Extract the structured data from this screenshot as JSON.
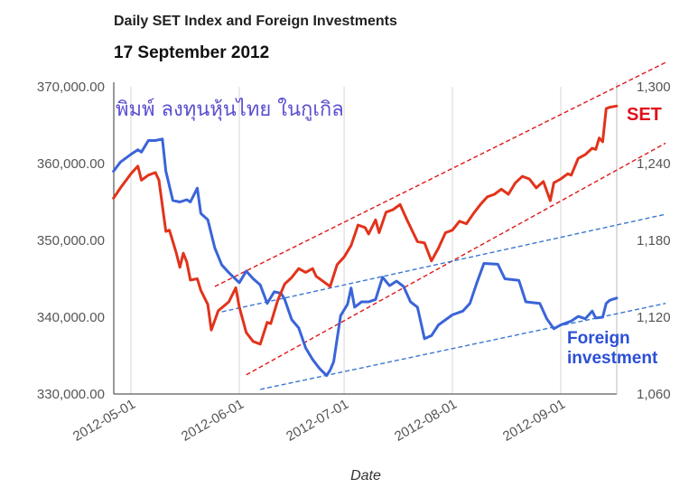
{
  "header": {
    "title": "Daily SET Index and Foreign Investments",
    "date": "17 September 2012",
    "watermark": "พิมพ์ ลงทุนหุ้นไทย ในกูเกิล"
  },
  "labels": {
    "set": "SET",
    "foreign_line1": "Foreign",
    "foreign_line2": "investment"
  },
  "chart_data": {
    "type": "line",
    "title": "Daily SET Index and Foreign Investments",
    "subtitle": "17 September 2012",
    "xlabel": "Date",
    "x_ticks": [
      "2012-05-01",
      "2012-06-01",
      "2012-07-01",
      "2012-08-01",
      "2012-09-01"
    ],
    "y_left": {
      "min": 330000,
      "max": 370000,
      "ticks": [
        "330,000.00",
        "340,000.00",
        "350,000.00",
        "360,000.00",
        "370,000.00"
      ]
    },
    "y_right": {
      "min": 1060,
      "max": 1300,
      "ticks": [
        "1,060",
        "1,120",
        "1,180",
        "1,240",
        "1,300"
      ]
    },
    "grid": "vertical",
    "series": [
      {
        "name": "Foreign investment",
        "axis": "left",
        "color": "#3a64d8",
        "points": [
          [
            "2012-04-26",
            359000
          ],
          [
            "2012-04-28",
            360200
          ],
          [
            "2012-05-01",
            361200
          ],
          [
            "2012-05-03",
            361800
          ],
          [
            "2012-05-04",
            361500
          ],
          [
            "2012-05-06",
            363000
          ],
          [
            "2012-05-08",
            363000
          ],
          [
            "2012-05-10",
            363200
          ],
          [
            "2012-05-11",
            359000
          ],
          [
            "2012-05-13",
            355200
          ],
          [
            "2012-05-15",
            355000
          ],
          [
            "2012-05-17",
            355300
          ],
          [
            "2012-05-18",
            355000
          ],
          [
            "2012-05-20",
            356800
          ],
          [
            "2012-05-21",
            353500
          ],
          [
            "2012-05-23",
            352700
          ],
          [
            "2012-05-25",
            349000
          ],
          [
            "2012-05-27",
            346800
          ],
          [
            "2012-05-29",
            345800
          ],
          [
            "2012-06-01",
            344500
          ],
          [
            "2012-06-03",
            346000
          ],
          [
            "2012-06-05",
            345000
          ],
          [
            "2012-06-07",
            344200
          ],
          [
            "2012-06-09",
            341800
          ],
          [
            "2012-06-11",
            343300
          ],
          [
            "2012-06-13",
            343100
          ],
          [
            "2012-06-14",
            342300
          ],
          [
            "2012-06-16",
            339700
          ],
          [
            "2012-06-18",
            338600
          ],
          [
            "2012-06-20",
            336000
          ],
          [
            "2012-06-22",
            334500
          ],
          [
            "2012-06-24",
            333300
          ],
          [
            "2012-06-26",
            332400
          ],
          [
            "2012-06-27",
            333100
          ],
          [
            "2012-06-28",
            334200
          ],
          [
            "2012-06-30",
            340200
          ],
          [
            "2012-07-02",
            341700
          ],
          [
            "2012-07-03",
            343800
          ],
          [
            "2012-07-04",
            341300
          ],
          [
            "2012-07-06",
            342000
          ],
          [
            "2012-07-08",
            342000
          ],
          [
            "2012-07-10",
            342300
          ],
          [
            "2012-07-12",
            345200
          ],
          [
            "2012-07-14",
            344100
          ],
          [
            "2012-07-16",
            344700
          ],
          [
            "2012-07-18",
            344000
          ],
          [
            "2012-07-20",
            342000
          ],
          [
            "2012-07-22",
            341300
          ],
          [
            "2012-07-24",
            337200
          ],
          [
            "2012-07-26",
            337600
          ],
          [
            "2012-07-28",
            339000
          ],
          [
            "2012-08-01",
            340300
          ],
          [
            "2012-08-04",
            340800
          ],
          [
            "2012-08-06",
            341800
          ],
          [
            "2012-08-08",
            344500
          ],
          [
            "2012-08-10",
            347000
          ],
          [
            "2012-08-14",
            346900
          ],
          [
            "2012-08-16",
            345000
          ],
          [
            "2012-08-20",
            344800
          ],
          [
            "2012-08-22",
            342000
          ],
          [
            "2012-08-26",
            341800
          ],
          [
            "2012-08-28",
            339800
          ],
          [
            "2012-08-30",
            338500
          ],
          [
            "2012-09-01",
            339000
          ],
          [
            "2012-09-04",
            339500
          ],
          [
            "2012-09-06",
            340100
          ],
          [
            "2012-09-08",
            339800
          ],
          [
            "2012-09-10",
            340800
          ],
          [
            "2012-09-11",
            339900
          ],
          [
            "2012-09-13",
            340000
          ],
          [
            "2012-09-14",
            341800
          ],
          [
            "2012-09-15",
            342200
          ],
          [
            "2012-09-17",
            342500
          ]
        ]
      },
      {
        "name": "SET",
        "axis": "right",
        "color": "#e2331b",
        "points": [
          [
            "2012-04-26",
            1213
          ],
          [
            "2012-04-28",
            1221
          ],
          [
            "2012-05-01",
            1232
          ],
          [
            "2012-05-03",
            1238
          ],
          [
            "2012-05-04",
            1227
          ],
          [
            "2012-05-06",
            1231
          ],
          [
            "2012-05-08",
            1233
          ],
          [
            "2012-05-09",
            1227
          ],
          [
            "2012-05-11",
            1187
          ],
          [
            "2012-05-12",
            1188
          ],
          [
            "2012-05-14",
            1170
          ],
          [
            "2012-05-15",
            1159
          ],
          [
            "2012-05-16",
            1170
          ],
          [
            "2012-05-17",
            1163
          ],
          [
            "2012-05-18",
            1149
          ],
          [
            "2012-05-20",
            1150
          ],
          [
            "2012-05-21",
            1141
          ],
          [
            "2012-05-23",
            1130
          ],
          [
            "2012-05-24",
            1110
          ],
          [
            "2012-05-26",
            1125
          ],
          [
            "2012-05-29",
            1132
          ],
          [
            "2012-05-31",
            1143
          ],
          [
            "2012-06-01",
            1128
          ],
          [
            "2012-06-03",
            1108
          ],
          [
            "2012-06-05",
            1101
          ],
          [
            "2012-06-07",
            1099
          ],
          [
            "2012-06-09",
            1116
          ],
          [
            "2012-06-10",
            1115
          ],
          [
            "2012-06-12",
            1133
          ],
          [
            "2012-06-14",
            1146
          ],
          [
            "2012-06-16",
            1151
          ],
          [
            "2012-06-18",
            1158
          ],
          [
            "2012-06-20",
            1155
          ],
          [
            "2012-06-22",
            1158
          ],
          [
            "2012-06-23",
            1152
          ],
          [
            "2012-06-25",
            1148
          ],
          [
            "2012-06-27",
            1144
          ],
          [
            "2012-06-29",
            1161
          ],
          [
            "2012-07-01",
            1167
          ],
          [
            "2012-07-03",
            1176
          ],
          [
            "2012-07-05",
            1192
          ],
          [
            "2012-07-07",
            1190
          ],
          [
            "2012-07-08",
            1185
          ],
          [
            "2012-07-10",
            1196
          ],
          [
            "2012-07-11",
            1186
          ],
          [
            "2012-07-13",
            1202
          ],
          [
            "2012-07-15",
            1204
          ],
          [
            "2012-07-17",
            1208
          ],
          [
            "2012-07-19",
            1196
          ],
          [
            "2012-07-22",
            1179
          ],
          [
            "2012-07-24",
            1178
          ],
          [
            "2012-07-26",
            1164
          ],
          [
            "2012-07-28",
            1174
          ],
          [
            "2012-07-30",
            1186
          ],
          [
            "2012-08-01",
            1188
          ],
          [
            "2012-08-03",
            1195
          ],
          [
            "2012-08-05",
            1193
          ],
          [
            "2012-08-07",
            1201
          ],
          [
            "2012-08-09",
            1208
          ],
          [
            "2012-08-11",
            1214
          ],
          [
            "2012-08-13",
            1216
          ],
          [
            "2012-08-15",
            1220
          ],
          [
            "2012-08-17",
            1216
          ],
          [
            "2012-08-19",
            1225
          ],
          [
            "2012-08-21",
            1230
          ],
          [
            "2012-08-23",
            1228
          ],
          [
            "2012-08-25",
            1221
          ],
          [
            "2012-08-27",
            1226
          ],
          [
            "2012-08-29",
            1211
          ],
          [
            "2012-08-30",
            1225
          ],
          [
            "2012-09-01",
            1228
          ],
          [
            "2012-09-03",
            1232
          ],
          [
            "2012-09-04",
            1231
          ],
          [
            "2012-09-06",
            1244
          ],
          [
            "2012-09-08",
            1247
          ],
          [
            "2012-09-10",
            1252
          ],
          [
            "2012-09-11",
            1251
          ],
          [
            "2012-09-12",
            1260
          ],
          [
            "2012-09-13",
            1257
          ],
          [
            "2012-09-14",
            1283
          ],
          [
            "2012-09-15",
            1284
          ],
          [
            "2012-09-17",
            1285
          ]
        ]
      }
    ],
    "trend_lines": [
      {
        "color": "#e01818",
        "style": "dashed",
        "from": [
          "2012-05-25",
          1144
        ],
        "to": [
          "2012-10-01",
          1319
        ]
      },
      {
        "color": "#e01818",
        "style": "dashed",
        "from": [
          "2012-06-03",
          1075
        ],
        "to": [
          "2012-10-01",
          1256
        ]
      },
      {
        "color": "#3a78d0",
        "style": "dashed",
        "from": [
          "2012-05-27",
          340700
        ],
        "to": [
          "2012-10-01",
          353400
        ]
      },
      {
        "color": "#3a78d0",
        "style": "dashed",
        "from": [
          "2012-06-07",
          330600
        ],
        "to": [
          "2012-10-01",
          341800
        ]
      }
    ]
  }
}
